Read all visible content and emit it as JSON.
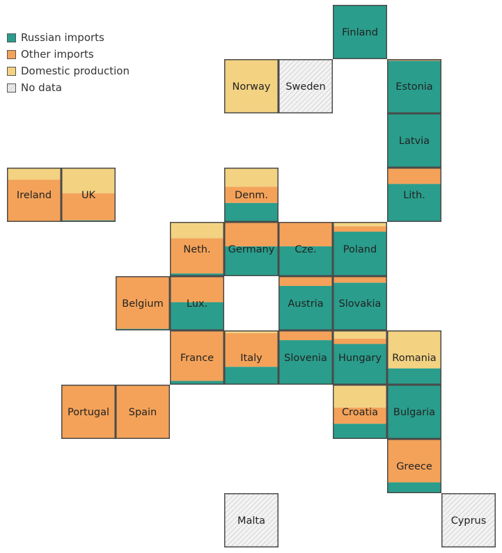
{
  "legend": [
    {
      "key": "russian",
      "label": "Russian imports",
      "color": "#2a9d8c"
    },
    {
      "key": "other",
      "label": "Other imports",
      "color": "#f4a259"
    },
    {
      "key": "domestic",
      "label": "Domestic production",
      "color": "#f3d282"
    },
    {
      "key": "nodata",
      "label": "No data",
      "color": "#e8e8e8"
    }
  ],
  "chart_data": {
    "type": "tile-map stacked share",
    "unit": "share of gas supply",
    "series_order": [
      "russian",
      "other",
      "domestic"
    ],
    "tiles": [
      {
        "label": "Finland",
        "col": 6,
        "row": 0,
        "russian": 1.0,
        "other": 0.0,
        "domestic": 0.0,
        "nodata": false
      },
      {
        "label": "Norway",
        "col": 4,
        "row": 1,
        "russian": 0.0,
        "other": 0.0,
        "domestic": 1.0,
        "nodata": false
      },
      {
        "label": "Sweden",
        "col": 5,
        "row": 1,
        "nodata": true
      },
      {
        "label": "Estonia",
        "col": 7,
        "row": 1,
        "russian": 0.97,
        "other": 0.03,
        "domestic": 0.0,
        "nodata": false
      },
      {
        "label": "Latvia",
        "col": 7,
        "row": 2,
        "russian": 1.0,
        "other": 0.0,
        "domestic": 0.0,
        "nodata": false
      },
      {
        "label": "Ireland",
        "col": 0,
        "row": 3,
        "russian": 0.0,
        "other": 0.78,
        "domestic": 0.22,
        "nodata": false
      },
      {
        "label": "UK",
        "col": 1,
        "row": 3,
        "russian": 0.03,
        "other": 0.5,
        "domestic": 0.47,
        "nodata": false
      },
      {
        "label": "Denm.",
        "col": 4,
        "row": 3,
        "russian": 0.35,
        "other": 0.3,
        "domestic": 0.35,
        "nodata": false
      },
      {
        "label": "Lith.",
        "col": 7,
        "row": 3,
        "russian": 0.7,
        "other": 0.3,
        "domestic": 0.0,
        "nodata": false
      },
      {
        "label": "Neth.",
        "col": 3,
        "row": 4,
        "russian": 0.05,
        "other": 0.65,
        "domestic": 0.3,
        "nodata": false
      },
      {
        "label": "Germany",
        "col": 4,
        "row": 4,
        "russian": 0.55,
        "other": 0.45,
        "domestic": 0.0,
        "nodata": false
      },
      {
        "label": "Cze.",
        "col": 5,
        "row": 4,
        "russian": 0.55,
        "other": 0.45,
        "domestic": 0.0,
        "nodata": false
      },
      {
        "label": "Poland",
        "col": 6,
        "row": 4,
        "russian": 0.82,
        "other": 0.1,
        "domestic": 0.08,
        "nodata": false
      },
      {
        "label": "Belgium",
        "col": 2,
        "row": 5,
        "russian": 0.03,
        "other": 0.97,
        "domestic": 0.0,
        "nodata": false
      },
      {
        "label": "Lux.",
        "col": 3,
        "row": 5,
        "russian": 0.52,
        "other": 0.48,
        "domestic": 0.0,
        "nodata": false
      },
      {
        "label": "Austria",
        "col": 5,
        "row": 5,
        "russian": 0.82,
        "other": 0.18,
        "domestic": 0.0,
        "nodata": false
      },
      {
        "label": "Slovakia",
        "col": 6,
        "row": 5,
        "russian": 0.88,
        "other": 0.12,
        "domestic": 0.0,
        "nodata": false
      },
      {
        "label": "France",
        "col": 3,
        "row": 6,
        "russian": 0.07,
        "other": 0.93,
        "domestic": 0.0,
        "nodata": false
      },
      {
        "label": "Italy",
        "col": 4,
        "row": 6,
        "russian": 0.33,
        "other": 0.62,
        "domestic": 0.05,
        "nodata": false
      },
      {
        "label": "Slovenia",
        "col": 5,
        "row": 6,
        "russian": 0.82,
        "other": 0.18,
        "domestic": 0.0,
        "nodata": false
      },
      {
        "label": "Hungary",
        "col": 6,
        "row": 6,
        "russian": 0.75,
        "other": 0.1,
        "domestic": 0.15,
        "nodata": false
      },
      {
        "label": "Romania",
        "col": 7,
        "row": 6,
        "russian": 0.3,
        "other": 0.0,
        "domestic": 0.7,
        "nodata": false
      },
      {
        "label": "Portugal",
        "col": 1,
        "row": 7,
        "russian": 0.0,
        "other": 1.0,
        "domestic": 0.0,
        "nodata": false
      },
      {
        "label": "Spain",
        "col": 2,
        "row": 7,
        "russian": 0.0,
        "other": 1.0,
        "domestic": 0.0,
        "nodata": false
      },
      {
        "label": "Croatia",
        "col": 6,
        "row": 7,
        "russian": 0.28,
        "other": 0.3,
        "domestic": 0.42,
        "nodata": false
      },
      {
        "label": "Bulgaria",
        "col": 7,
        "row": 7,
        "russian": 1.0,
        "other": 0.0,
        "domestic": 0.0,
        "nodata": false
      },
      {
        "label": "Greece",
        "col": 7,
        "row": 8,
        "russian": 0.2,
        "other": 0.8,
        "domestic": 0.0,
        "nodata": false
      },
      {
        "label": "Malta",
        "col": 4,
        "row": 9,
        "nodata": true
      },
      {
        "label": "Cyprus",
        "col": 8,
        "row": 9,
        "nodata": true
      }
    ]
  }
}
